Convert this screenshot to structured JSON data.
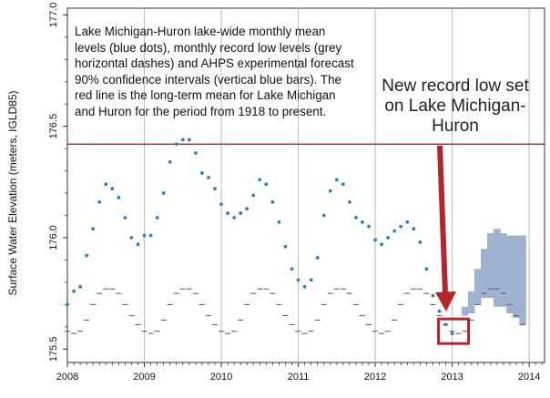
{
  "colors": {
    "mean_dot": "#2f7fc0",
    "record_low": "#555555",
    "forecast": "#9fb3d0",
    "long_term_mean": "#8b1a1a",
    "annotation": "#b3262c",
    "gridline": "#bbbbbb"
  },
  "description": "Lake Michigan-Huron lake-wide monthly mean levels (blue dots), monthly record low levels (grey horizontal dashes) and AHPS experimental forecast 90% confidence intervals (vertical blue bars). The red line is the long-term mean for Lake Michigan and Huron for the period from 1918 to present.",
  "callout": "New record low set on Lake Michigan-Huron",
  "chart_data": {
    "type": "scatter",
    "ylabel": "Surface Water Elevation (meters, IGLD85)",
    "xlabel": "",
    "xlim": [
      2008,
      2014.2
    ],
    "ylim": [
      175.44,
      177.03
    ],
    "xticks": [
      "2008",
      "2009",
      "2010",
      "2011",
      "2012",
      "2013",
      "2014"
    ],
    "yticks": [
      "175.5",
      "176.0",
      "176.5",
      "177.0"
    ],
    "grid": "vertical gridlines at each January",
    "long_term_mean": 176.42,
    "monthly_mean": {
      "x": [
        2008.0,
        2008.083,
        2008.167,
        2008.25,
        2008.333,
        2008.417,
        2008.5,
        2008.583,
        2008.667,
        2008.75,
        2008.833,
        2008.917,
        2009.0,
        2009.083,
        2009.167,
        2009.25,
        2009.333,
        2009.417,
        2009.5,
        2009.583,
        2009.667,
        2009.75,
        2009.833,
        2009.917,
        2010.0,
        2010.083,
        2010.167,
        2010.25,
        2010.333,
        2010.417,
        2010.5,
        2010.583,
        2010.667,
        2010.75,
        2010.833,
        2010.917,
        2011.0,
        2011.083,
        2011.167,
        2011.25,
        2011.333,
        2011.417,
        2011.5,
        2011.583,
        2011.667,
        2011.75,
        2011.833,
        2011.917,
        2012.0,
        2012.083,
        2012.167,
        2012.25,
        2012.333,
        2012.417,
        2012.5,
        2012.583,
        2012.667,
        2012.75,
        2012.833,
        2012.917,
        2013.0
      ],
      "y": [
        175.7,
        175.76,
        175.78,
        175.92,
        176.04,
        176.16,
        176.24,
        176.22,
        176.18,
        176.09,
        176.0,
        175.97,
        176.01,
        176.01,
        176.09,
        176.2,
        176.34,
        176.42,
        176.44,
        176.44,
        176.38,
        176.29,
        176.27,
        176.22,
        176.15,
        176.11,
        176.09,
        176.11,
        176.13,
        176.19,
        176.26,
        176.24,
        176.16,
        176.07,
        175.96,
        175.86,
        175.81,
        175.78,
        175.81,
        175.91,
        176.1,
        176.21,
        176.26,
        176.24,
        176.16,
        176.09,
        176.07,
        176.05,
        175.99,
        175.97,
        176.0,
        176.03,
        176.05,
        176.07,
        176.04,
        175.98,
        175.86,
        175.74,
        175.67,
        175.61,
        175.57
      ]
    },
    "record_low": {
      "x_start": 2008.0,
      "step": 0.0833,
      "months": 72,
      "y_by_month": [
        175.58,
        175.57,
        175.58,
        175.63,
        175.7,
        175.75,
        175.77,
        175.77,
        175.75,
        175.7,
        175.65,
        175.61
      ]
    },
    "forecast_ci_90": {
      "x": [
        2013.167,
        2013.25,
        2013.333,
        2013.417,
        2013.5,
        2013.583,
        2013.667,
        2013.75,
        2013.833,
        2013.917
      ],
      "low": [
        175.65,
        175.66,
        175.7,
        175.73,
        175.73,
        175.69,
        175.69,
        175.66,
        175.64,
        175.61
      ],
      "high": [
        175.69,
        175.76,
        175.86,
        175.95,
        176.02,
        176.04,
        176.02,
        176.01,
        176.01,
        176.01
      ]
    },
    "highlight": {
      "x": 2013.0,
      "y": 175.57
    }
  }
}
